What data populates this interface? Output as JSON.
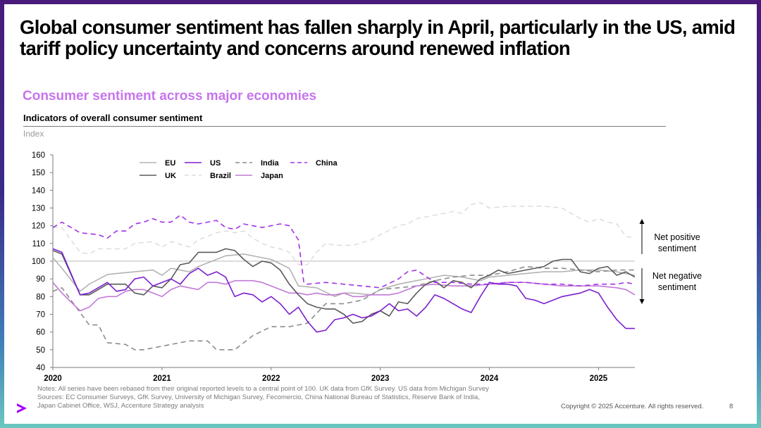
{
  "slide": {
    "title": "Global consumer sentiment has fallen sharply in April, particularly in the US, amid tariff policy uncertainty and concerns around renewed inflation",
    "subtitle": "Consumer sentiment across major economies",
    "chart_heading": "Indicators of overall consumer sentiment",
    "unit_label": "Index",
    "notes": [
      "Notes: All series have been rebased from their original reported levels to a central point of 100. UK data from GfK Survey. US data from Michigan Survey",
      "Sources: EC Consumer Surveys, GfK Survey, University of Michigan Survey, Fecomercio, China National Bureau of Statistics, Reserve Bank of India,",
      "Japan Cabinet Office, WSJ, Accenture Strategy analysis"
    ],
    "copyright": "Copyright © 2025 Accenture. All rights reserved.",
    "page_number": "8",
    "logo_icon": "accenture-logo-icon"
  },
  "chart_data": {
    "type": "line",
    "title": "Indicators of overall consumer sentiment",
    "ylabel": "Index",
    "xlabel": "",
    "xlim": [
      2020,
      2025.333
    ],
    "ylim": [
      40,
      160
    ],
    "yticks": [
      40,
      50,
      60,
      70,
      80,
      90,
      100,
      110,
      120,
      130,
      140,
      150,
      160
    ],
    "xticks": [
      2020,
      2021,
      2022,
      2023,
      2024,
      2025
    ],
    "reference_line": 100,
    "annotations": {
      "positive_label": [
        "Net positive",
        "sentiment"
      ],
      "negative_label": [
        "Net negative",
        "sentiment"
      ]
    },
    "legend": [
      {
        "name": "EU",
        "color": "#b3b3b3",
        "dash": "solid"
      },
      {
        "name": "US",
        "color": "#7b1fd0",
        "dash": "solid"
      },
      {
        "name": "India",
        "color": "#8c8c8c",
        "dash": "dash"
      },
      {
        "name": "China",
        "color": "#a232e6",
        "dash": "dash"
      },
      {
        "name": "UK",
        "color": "#595959",
        "dash": "solid"
      },
      {
        "name": "Brazil",
        "color": "#dedede",
        "dash": "dash"
      },
      {
        "name": "Japan",
        "color": "#c27ad6",
        "dash": "solid"
      }
    ],
    "series": [
      {
        "name": "EU",
        "color": "#b3b3b3",
        "dash": "solid",
        "x": [
          2020,
          2020.083,
          2020.25,
          2020.333,
          2020.5,
          2020.583,
          2020.75,
          2020.917,
          2021,
          2021.083,
          2021.25,
          2021.333,
          2021.5,
          2021.583,
          2021.75,
          2021.917,
          2022,
          2022.167,
          2022.25,
          2022.417,
          2022.583,
          2022.667,
          2022.75,
          2022.917,
          2023,
          2023.167,
          2023.333,
          2023.5,
          2023.583,
          2023.75,
          2023.917,
          2024,
          2024.167,
          2024.333,
          2024.5,
          2024.667,
          2024.833,
          2025,
          2025.167,
          2025.333
        ],
        "y": [
          102,
          96,
          83,
          87,
          92.5,
          93,
          94,
          95,
          92,
          96,
          94,
          97,
          101,
          103,
          104,
          102,
          101,
          96,
          86,
          85,
          80,
          82,
          82,
          81,
          84,
          87,
          89,
          91,
          92,
          91,
          89,
          91,
          92,
          93,
          94,
          94,
          95,
          95,
          94,
          92
        ]
      },
      {
        "name": "US",
        "color": "#7b1fd0",
        "dash": "solid",
        "x": [
          2020,
          2020.083,
          2020.25,
          2020.333,
          2020.5,
          2020.583,
          2020.667,
          2020.75,
          2020.833,
          2020.917,
          2021,
          2021.083,
          2021.167,
          2021.25,
          2021.333,
          2021.417,
          2021.5,
          2021.583,
          2021.667,
          2021.75,
          2021.833,
          2021.917,
          2022,
          2022.083,
          2022.167,
          2022.25,
          2022.333,
          2022.417,
          2022.5,
          2022.583,
          2022.667,
          2022.75,
          2022.833,
          2022.917,
          2023,
          2023.083,
          2023.167,
          2023.25,
          2023.333,
          2023.417,
          2023.5,
          2023.583,
          2023.667,
          2023.75,
          2023.833,
          2023.917,
          2024,
          2024.083,
          2024.167,
          2024.25,
          2024.333,
          2024.417,
          2024.5,
          2024.583,
          2024.667,
          2024.75,
          2024.833,
          2024.917,
          2025,
          2025.083,
          2025.167,
          2025.25,
          2025.333
        ],
        "y": [
          107,
          105,
          81,
          82,
          88,
          83,
          84,
          90,
          91,
          86,
          88,
          90,
          87,
          93,
          96,
          92,
          94,
          91,
          80,
          82,
          81,
          77,
          80,
          76,
          70,
          74,
          66,
          60,
          61,
          67,
          68,
          70,
          68,
          69,
          72,
          76,
          72,
          73,
          69,
          74,
          81,
          79,
          76,
          73,
          71,
          80,
          88,
          87,
          87,
          86,
          79,
          78,
          76,
          78,
          80,
          81,
          82,
          84,
          82,
          74,
          67,
          62,
          62
        ]
      },
      {
        "name": "India",
        "color": "#8c8c8c",
        "dash": "dash",
        "x": [
          2020,
          2020.083,
          2020.333,
          2020.417,
          2020.5,
          2020.667,
          2020.75,
          2020.833,
          2021,
          2021.083,
          2021.25,
          2021.417,
          2021.5,
          2021.583,
          2021.667,
          2021.833,
          2022,
          2022.167,
          2022.333,
          2022.5,
          2022.667,
          2022.833,
          2023,
          2023.167,
          2023.333,
          2023.5,
          2023.667,
          2023.833,
          2024,
          2024.167,
          2024.333,
          2024.5,
          2024.667,
          2024.833,
          2025,
          2025.167,
          2025.333
        ],
        "y": [
          83,
          85,
          64,
          64,
          54,
          53,
          50,
          50,
          52,
          53,
          55,
          55,
          50,
          50,
          50,
          58,
          63,
          63,
          65,
          76,
          76,
          78,
          84,
          85,
          86,
          89,
          91,
          92,
          92,
          94,
          97,
          96,
          96,
          95,
          94,
          95,
          95
        ]
      },
      {
        "name": "China",
        "color": "#a232e6",
        "dash": "dash",
        "x": [
          2020,
          2020.083,
          2020.25,
          2020.417,
          2020.5,
          2020.583,
          2020.667,
          2020.75,
          2020.833,
          2020.917,
          2021,
          2021.083,
          2021.167,
          2021.25,
          2021.333,
          2021.417,
          2021.5,
          2021.583,
          2021.667,
          2021.75,
          2021.833,
          2021.917,
          2022,
          2022.083,
          2022.167,
          2022.25,
          2022.3,
          2022.333,
          2022.5,
          2022.667,
          2022.833,
          2023,
          2023.167,
          2023.25,
          2023.333,
          2023.5,
          2023.667,
          2023.833,
          2024,
          2024.167,
          2024.333,
          2024.5,
          2024.667,
          2024.833,
          2025,
          2025.167,
          2025.25,
          2025.333
        ],
        "y": [
          119,
          122,
          116,
          115,
          113,
          117,
          117,
          121,
          122,
          124,
          122,
          122,
          126,
          122,
          121,
          122,
          123,
          119,
          118,
          121,
          120,
          119,
          120,
          121,
          120,
          112,
          88,
          87,
          88,
          87,
          86,
          85,
          90,
          94,
          95,
          88,
          88,
          87,
          87,
          88,
          88,
          87,
          87,
          86,
          87,
          87,
          88,
          87
        ]
      },
      {
        "name": "UK",
        "color": "#595959",
        "dash": "solid",
        "x": [
          2020,
          2020.083,
          2020.25,
          2020.333,
          2020.417,
          2020.5,
          2020.583,
          2020.667,
          2020.75,
          2020.833,
          2020.917,
          2021,
          2021.083,
          2021.167,
          2021.25,
          2021.333,
          2021.417,
          2021.5,
          2021.583,
          2021.667,
          2021.75,
          2021.833,
          2021.917,
          2022,
          2022.083,
          2022.167,
          2022.25,
          2022.333,
          2022.417,
          2022.5,
          2022.583,
          2022.667,
          2022.75,
          2022.833,
          2022.917,
          2023,
          2023.083,
          2023.167,
          2023.25,
          2023.333,
          2023.417,
          2023.5,
          2023.583,
          2023.667,
          2023.75,
          2023.833,
          2023.917,
          2024,
          2024.083,
          2024.167,
          2024.25,
          2024.333,
          2024.417,
          2024.5,
          2024.583,
          2024.667,
          2024.75,
          2024.833,
          2024.917,
          2025,
          2025.083,
          2025.167,
          2025.25,
          2025.333
        ],
        "y": [
          106,
          104,
          81,
          81,
          84,
          87,
          87,
          87,
          82,
          81,
          86,
          85,
          90,
          98,
          99,
          105,
          105,
          105,
          107,
          106,
          101,
          97,
          100,
          99,
          95,
          87,
          81,
          76,
          74,
          73,
          73,
          70,
          65,
          66,
          70,
          72,
          69,
          77,
          76,
          82,
          87,
          89,
          85,
          89,
          88,
          85,
          90,
          92,
          95,
          93,
          94,
          95,
          96,
          97,
          100,
          101,
          101,
          94,
          93,
          96,
          97,
          92,
          94,
          91
        ]
      },
      {
        "name": "Brazil",
        "color": "#dedede",
        "dash": "dash",
        "x": [
          2020,
          2020.083,
          2020.25,
          2020.333,
          2020.417,
          2020.5,
          2020.667,
          2020.75,
          2020.917,
          2021,
          2021.083,
          2021.25,
          2021.333,
          2021.5,
          2021.583,
          2021.667,
          2021.75,
          2021.833,
          2021.917,
          2022,
          2022.083,
          2022.167,
          2022.25,
          2022.333,
          2022.417,
          2022.5,
          2022.583,
          2022.75,
          2022.917,
          2023,
          2023.167,
          2023.25,
          2023.333,
          2023.5,
          2023.583,
          2023.667,
          2023.75,
          2023.833,
          2023.917,
          2024,
          2024.167,
          2024.333,
          2024.5,
          2024.667,
          2024.833,
          2024.917,
          2025,
          2025.083,
          2025.167,
          2025.25,
          2025.333
        ],
        "y": [
          119,
          119,
          105,
          104,
          107,
          107,
          107,
          110,
          111,
          108,
          111,
          108,
          112,
          116,
          117,
          116,
          117,
          113,
          110,
          108,
          107,
          105,
          98,
          98,
          105,
          110,
          109,
          109,
          112,
          115,
          120,
          121,
          124,
          126,
          127,
          128,
          127,
          132,
          133,
          130,
          131,
          131,
          131,
          130,
          124,
          122,
          124,
          122,
          121,
          114,
          113
        ]
      },
      {
        "name": "Japan",
        "color": "#c27ad6",
        "dash": "solid",
        "x": [
          2020,
          2020.083,
          2020.25,
          2020.333,
          2020.417,
          2020.5,
          2020.583,
          2020.667,
          2020.75,
          2020.833,
          2020.917,
          2021,
          2021.083,
          2021.167,
          2021.25,
          2021.333,
          2021.417,
          2021.5,
          2021.583,
          2021.667,
          2021.75,
          2021.833,
          2021.917,
          2022,
          2022.083,
          2022.167,
          2022.25,
          2022.333,
          2022.417,
          2022.5,
          2022.583,
          2022.667,
          2022.75,
          2022.833,
          2022.917,
          2023,
          2023.083,
          2023.167,
          2023.25,
          2023.333,
          2023.5,
          2023.667,
          2023.833,
          2024,
          2024.167,
          2024.333,
          2024.5,
          2024.667,
          2024.833,
          2025,
          2025.167,
          2025.25,
          2025.333
        ],
        "y": [
          88,
          82,
          72,
          74,
          79,
          80,
          80,
          83,
          84,
          84,
          82,
          80,
          84,
          86,
          85,
          84,
          88,
          88,
          87,
          89,
          89,
          89,
          88,
          86,
          84,
          82,
          82,
          81,
          82,
          81,
          81,
          82,
          80,
          80,
          81,
          81,
          81,
          82,
          84,
          86,
          87,
          86,
          86,
          87,
          88,
          88,
          87,
          86,
          86,
          86,
          85,
          84,
          81
        ]
      }
    ]
  }
}
